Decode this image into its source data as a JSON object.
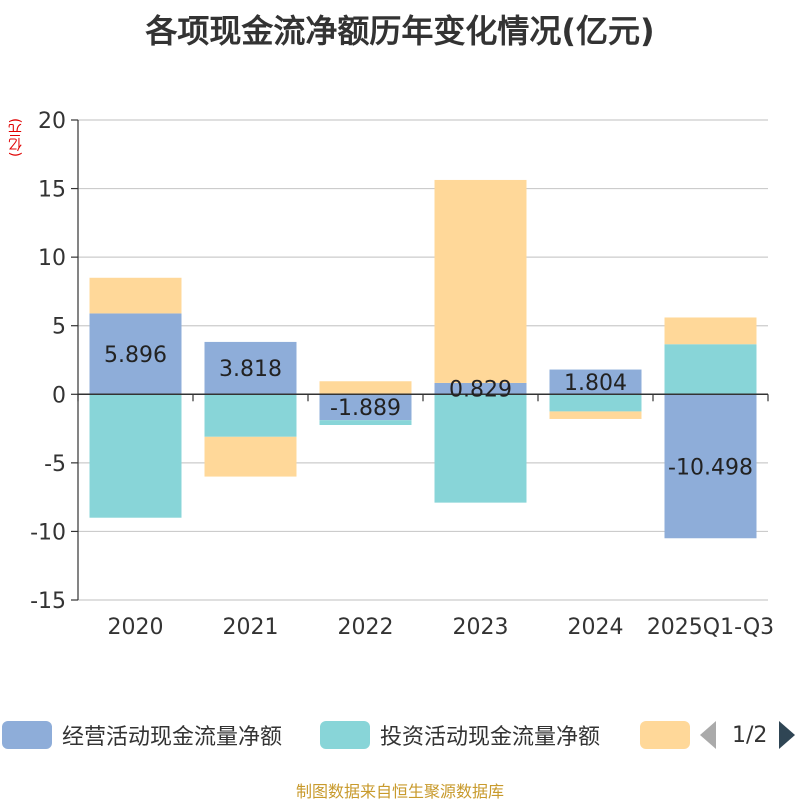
{
  "title": "各项现金流净额历年变化情况(亿元)",
  "unit_label": "(亿元)",
  "source": "制图数据来自恒生聚源数据库",
  "pager": {
    "text": "1/2"
  },
  "chart_data": {
    "type": "bar",
    "stacked": true,
    "title": "各项现金流净额历年变化情况(亿元)",
    "ylabel": "(亿元)",
    "ylim": [
      -15,
      20
    ],
    "yticks": [
      -15,
      -10,
      -5,
      0,
      5,
      10,
      15,
      20
    ],
    "categories": [
      "2020",
      "2021",
      "2022",
      "2023",
      "2024",
      "2025Q1-Q3"
    ],
    "series": [
      {
        "name": "经营活动现金流量净额",
        "color": "#8eadd9",
        "values": [
          5.896,
          3.818,
          -1.889,
          0.829,
          1.804,
          -10.498
        ]
      },
      {
        "name": "投资活动现金流量净额",
        "color": "#88d5d8",
        "values": [
          -9.0,
          -3.1,
          -0.35,
          -7.9,
          -1.25,
          3.65
        ]
      },
      {
        "name": "",
        "color": "#ffd899",
        "values": [
          2.6,
          -2.9,
          0.95,
          14.8,
          -0.55,
          1.95
        ]
      }
    ],
    "data_labels": [
      "5.896",
      "3.818",
      "-1.889",
      "0.829",
      "1.804",
      "-10.498"
    ],
    "legend_position": "bottom"
  }
}
